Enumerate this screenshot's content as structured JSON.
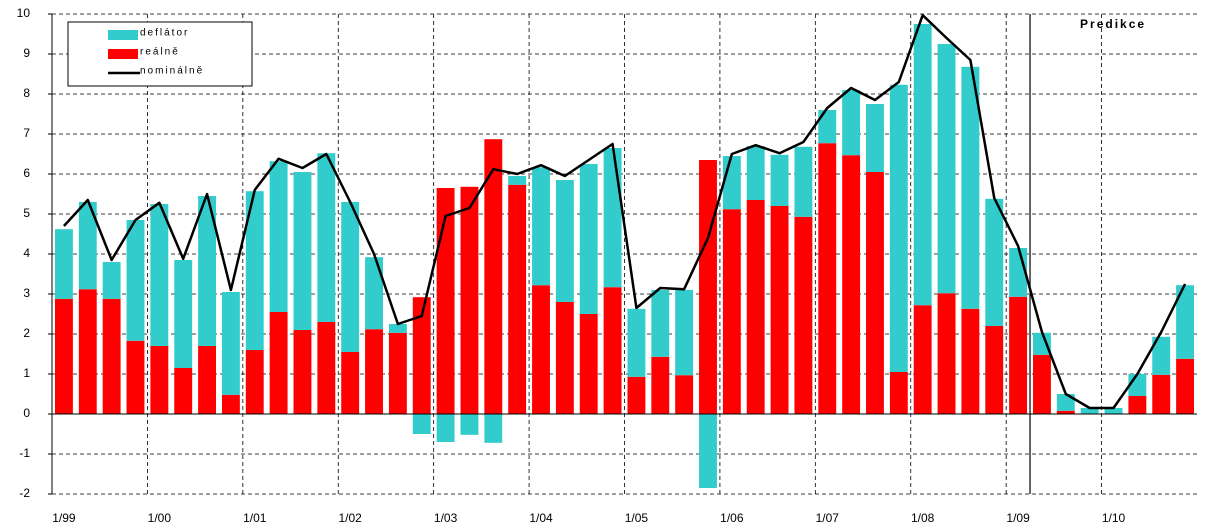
{
  "chart_data": {
    "type": "bar",
    "stacked": true,
    "categories": [
      "1/99",
      null,
      null,
      null,
      "1/00",
      null,
      null,
      null,
      "1/01",
      null,
      null,
      null,
      "1/02",
      null,
      null,
      null,
      "1/03",
      null,
      null,
      null,
      "1/04",
      null,
      null,
      null,
      "1/05",
      null,
      null,
      null,
      "1/06",
      null,
      null,
      null,
      "1/07",
      null,
      null,
      null,
      "1/08",
      null,
      null,
      null,
      "1/09",
      null,
      null,
      null,
      "1/10",
      null,
      null,
      null
    ],
    "series": [
      {
        "name": "deflátor",
        "color": "#33cccc",
        "type": "bar",
        "values": [
          1.74,
          2.18,
          0.92,
          3.02,
          3.55,
          2.7,
          3.75,
          2.57,
          3.97,
          3.77,
          3.95,
          4.22,
          3.75,
          1.8,
          0.22,
          -0.5,
          -0.7,
          -0.52,
          -0.72,
          0.22,
          2.95,
          3.05,
          3.75,
          3.48,
          1.7,
          1.67,
          2.13,
          -1.85,
          1.33,
          1.35,
          1.28,
          1.75,
          0.83,
          1.63,
          1.7,
          7.18,
          7.03,
          6.23,
          6.05,
          3.18,
          1.22,
          0.55,
          0.42,
          0.15,
          0.15,
          0.55,
          0.95,
          1.84
        ]
      },
      {
        "name": "reálně",
        "color": "#ff0000",
        "type": "bar",
        "values": [
          2.88,
          3.12,
          2.88,
          1.83,
          1.7,
          1.15,
          1.7,
          0.48,
          1.6,
          2.55,
          2.1,
          2.3,
          1.55,
          2.12,
          2.03,
          2.92,
          5.65,
          5.68,
          6.87,
          5.73,
          3.22,
          2.8,
          2.5,
          3.17,
          0.93,
          1.43,
          0.97,
          6.35,
          5.12,
          5.35,
          5.2,
          4.93,
          6.77,
          6.47,
          6.05,
          1.05,
          2.72,
          3.02,
          2.63,
          2.2,
          2.93,
          1.48,
          0.08,
          0,
          0,
          0.45,
          0.98,
          1.38
        ]
      },
      {
        "name": "nominálně",
        "color": "#000000",
        "type": "line",
        "values": [
          4.7,
          5.35,
          3.85,
          4.85,
          5.28,
          3.88,
          5.5,
          3.1,
          5.6,
          6.38,
          6.15,
          6.5,
          5.3,
          4.0,
          2.25,
          2.45,
          4.95,
          5.15,
          6.12,
          6.0,
          6.22,
          5.95,
          6.35,
          6.75,
          2.65,
          3.15,
          3.12,
          4.4,
          6.5,
          6.72,
          6.52,
          6.8,
          7.65,
          8.15,
          7.85,
          8.3,
          9.97,
          9.4,
          8.85,
          5.4,
          4.2,
          2.05,
          0.5,
          0.15,
          0.15,
          1.0,
          2.05,
          3.25
        ]
      }
    ],
    "ylim": [
      -2,
      10
    ],
    "yticks": [
      -2,
      -1,
      0,
      1,
      2,
      3,
      4,
      5,
      6,
      7,
      8,
      9,
      10
    ],
    "grid": true,
    "legend": "upper left",
    "annotations": [
      {
        "text": "Predikce",
        "x_index": 41
      }
    ]
  }
}
